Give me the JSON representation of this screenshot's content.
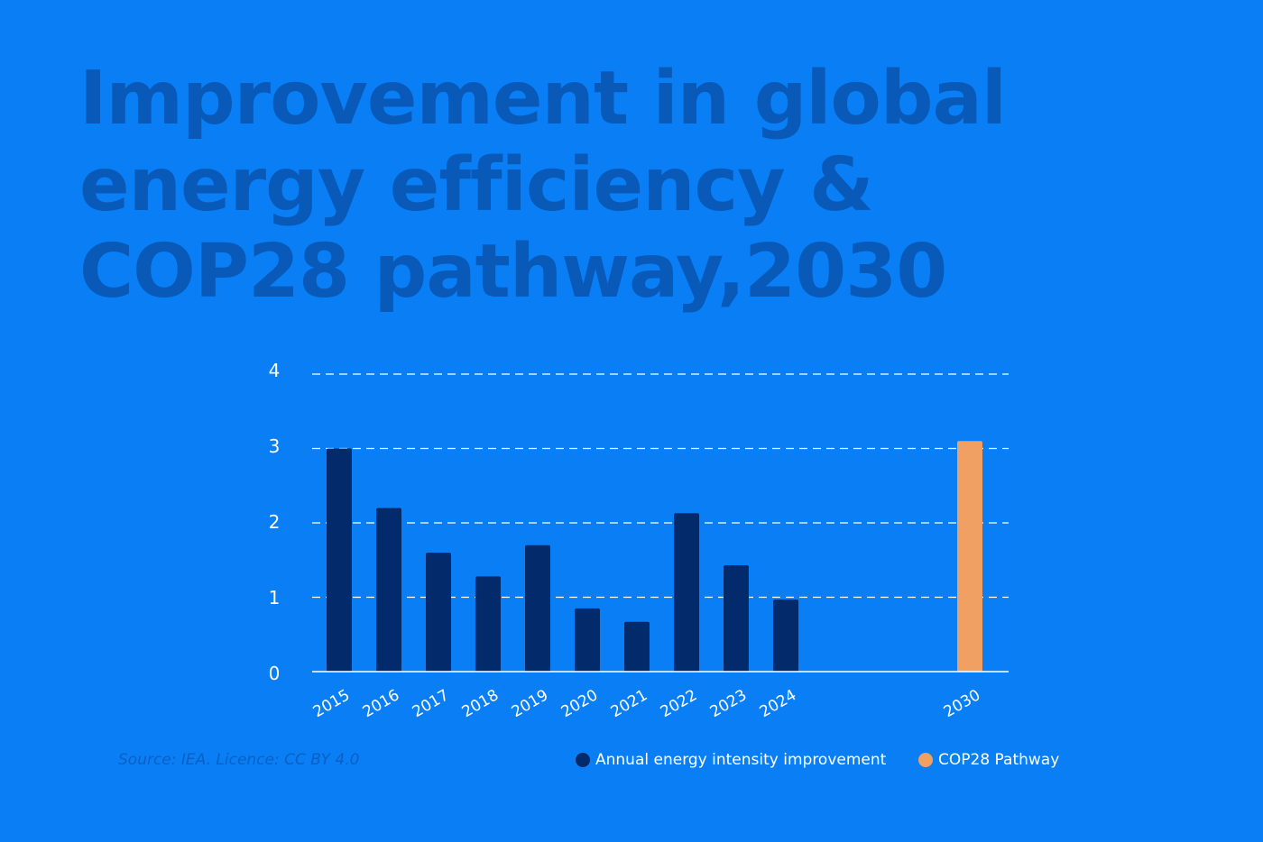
{
  "title": {
    "line1": "Improvement in global",
    "line2": "energy efficiency &",
    "line3": "COP28 pathway,2030"
  },
  "source": "Source: IEA. Licence: CC BY 4.0",
  "colors": {
    "background": "#0a7ff5",
    "title": "#0859b8",
    "annual_bar": "#032a6b",
    "cop28_bar": "#f0a062",
    "grid": "#ffffff"
  },
  "chart_data": {
    "type": "bar",
    "title": "Improvement in global energy efficiency & COP28 pathway,2030",
    "xlabel": "",
    "ylabel": "",
    "ylim": [
      0,
      4
    ],
    "yticks": [
      "0",
      "1",
      "2",
      "3",
      "4"
    ],
    "grid": "dashed horizontal",
    "legend_position": "bottom",
    "categories": [
      "2015",
      "2016",
      "2017",
      "2018",
      "2019",
      "2020",
      "2021",
      "2022",
      "2023",
      "2024",
      "2030"
    ],
    "series": [
      {
        "name": "Annual energy intensity improvement",
        "color": "#032a6b",
        "values": [
          3.0,
          2.2,
          1.6,
          1.28,
          1.7,
          0.85,
          0.67,
          2.13,
          1.43,
          0.97,
          null
        ]
      },
      {
        "name": "COP28 Pathway",
        "color": "#f0a062",
        "values": [
          null,
          null,
          null,
          null,
          null,
          null,
          null,
          null,
          null,
          null,
          3.1
        ]
      }
    ]
  }
}
